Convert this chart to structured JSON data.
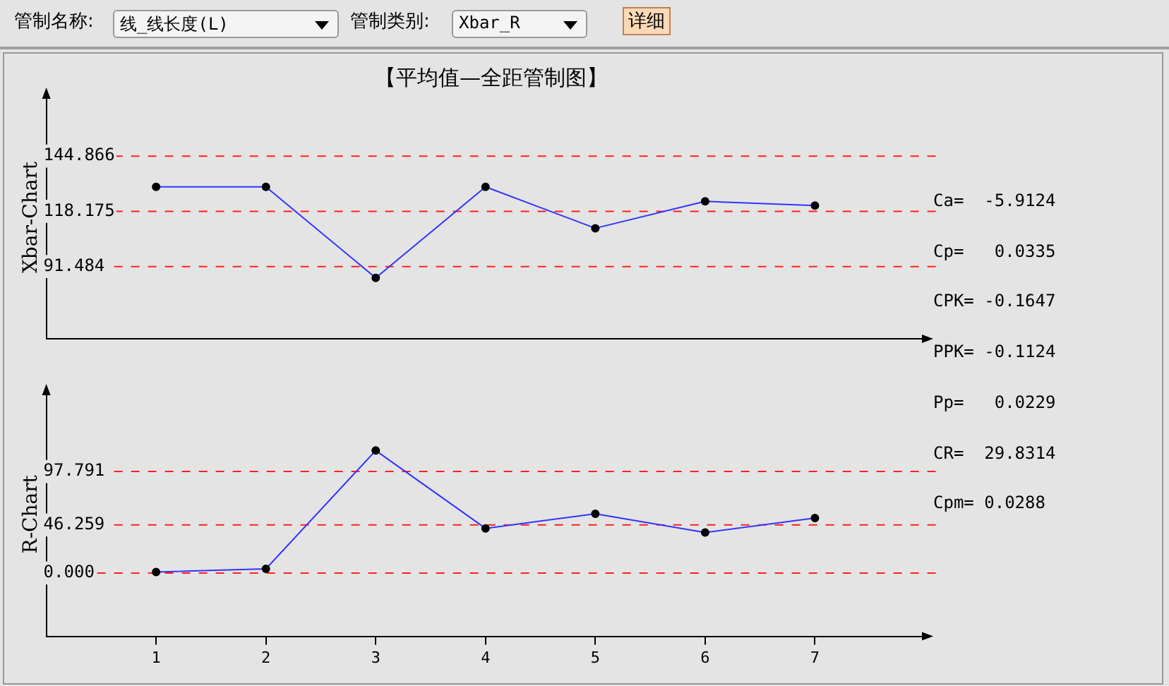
{
  "chart_data": [
    {
      "type": "line",
      "title": "【平均值—全距管制图】",
      "ylabel": "Xbar-Chart",
      "x": [
        1,
        2,
        3,
        4,
        5,
        6,
        7
      ],
      "series": [
        {
          "color": "#3333ff",
          "values": [
            130,
            130,
            86,
            130,
            110,
            123,
            121
          ]
        }
      ],
      "xlim": [
        0,
        8
      ],
      "xticks": [
        1,
        2,
        3,
        4,
        5,
        6,
        7
      ],
      "ylim": [
        56.6,
        173.9
      ],
      "yticks": [
        91.484,
        118.175,
        144.866
      ],
      "tick_labels": "y",
      "grid": false,
      "legend": false,
      "marker": "circle",
      "ref_lines": [
        {
          "axis": "y",
          "value": 144.866,
          "color": "#ff2020",
          "line_style": "dashed"
        },
        {
          "axis": "y",
          "value": 118.175,
          "color": "#ff2020",
          "line_style": "dashed"
        },
        {
          "axis": "y",
          "value": 91.484,
          "color": "#ff2020",
          "line_style": "dashed"
        }
      ],
      "annotations": [
        "管制名称:",
        "线_线长度(L)",
        "管制类别:",
        "Xbar_R",
        "详细",
        "Ca=  -5.9124",
        "Cp=   0.0335",
        "CPK= -0.1647",
        "PPK= -0.1124"
      ]
    },
    {
      "type": "line",
      "ylabel": "R-Chart",
      "x": [
        1,
        2,
        3,
        4,
        5,
        6,
        7
      ],
      "series": [
        {
          "color": "#3333ff",
          "values": [
            1,
            4,
            118,
            43,
            57,
            39,
            53
          ]
        }
      ],
      "xlim": [
        0,
        8
      ],
      "xticks": [
        1,
        2,
        3,
        4,
        5,
        6,
        7
      ],
      "ylim": [
        -61,
        174
      ],
      "yticks": [
        {
          "value": 0,
          "label": "0.000"
        },
        46.259,
        97.791
      ],
      "grid": false,
      "legend": false,
      "marker": "circle",
      "ref_lines": [
        {
          "axis": "y",
          "value": 97.791,
          "color": "#ff2020",
          "line_style": "dashed"
        },
        {
          "axis": "y",
          "value": 46.259,
          "color": "#ff2020",
          "line_style": "dashed"
        },
        {
          "axis": "y",
          "value": 0,
          "color": "#ff2020",
          "line_style": "dashed"
        }
      ],
      "annotations": [
        "Pp=   0.0229",
        "CR=  29.8314",
        "Cpm= 0.0288"
      ]
    }
  ]
}
